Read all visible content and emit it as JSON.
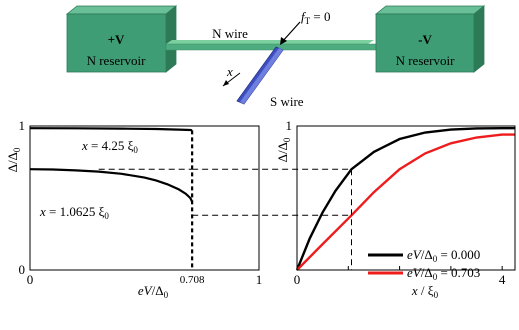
{
  "schematic": {
    "left_reservoir": {
      "sign": "+V",
      "label": "N reservoir"
    },
    "right_reservoir": {
      "sign": "-V",
      "label": "N reservoir"
    },
    "n_wire_label": "N wire",
    "s_wire_label": "S wire",
    "x_arrow_label": "x",
    "fT_symbol": "f",
    "fT_subscript": "T",
    "fT_value": " = 0",
    "colors": {
      "reservoir": "#3f9d75",
      "reservoir_top": "#69bf97",
      "reservoir_side": "#2d7a57",
      "n_wire": "#4fab80",
      "s_wire": "#3d4fc0"
    }
  },
  "chart_data": [
    {
      "type": "line",
      "xlabel_italic": "eV",
      "xlabel_rest": "/Δ",
      "xlabel_sub": "0",
      "ylabel_main": "Δ/Δ",
      "ylabel_sub": "0",
      "xlim": [
        0,
        1
      ],
      "ylim": [
        0,
        1
      ],
      "xticks": [
        "0",
        "1"
      ],
      "yticks": [
        "0",
        "1"
      ],
      "special_tick": {
        "value": 0.708,
        "label": "0.708"
      },
      "annotations": [
        {
          "italic": "x",
          "rest": " = 4.25 ξ",
          "sub": "0"
        },
        {
          "italic": "x",
          "rest": " = 1.0625 ξ",
          "sub": "0"
        }
      ],
      "series": [
        {
          "color": "#000000",
          "x": [
            0,
            0.2,
            0.4,
            0.55,
            0.65,
            0.7,
            0.708
          ],
          "y": [
            0.985,
            0.984,
            0.982,
            0.979,
            0.975,
            0.972,
            0.97
          ]
        },
        {
          "color": "#000000",
          "x": [
            0,
            0.1,
            0.2,
            0.3,
            0.4,
            0.5,
            0.55,
            0.6,
            0.65,
            0.68,
            0.7,
            0.708
          ],
          "y": [
            0.7,
            0.698,
            0.692,
            0.683,
            0.668,
            0.642,
            0.622,
            0.595,
            0.56,
            0.53,
            0.5,
            0.475
          ]
        }
      ],
      "dashed_drop": {
        "x": 0.708,
        "y_from": 0.97,
        "y_to": 0
      }
    },
    {
      "type": "line",
      "xlabel_italic": "x",
      "xlabel_rest": " / ξ",
      "xlabel_sub": "0",
      "ylabel_main": "Δ/Δ",
      "ylabel_sub": "0",
      "xlim": [
        0,
        4.25
      ],
      "ylim": [
        0,
        1
      ],
      "xticks": [
        "0",
        "4"
      ],
      "yticks": [
        "1"
      ],
      "series": [
        {
          "name_italic": "eV",
          "name_rest": "/Δ",
          "name_sub": "0",
          "name_value": " = 0.000",
          "color": "#000000",
          "x": [
            0,
            0.25,
            0.5,
            0.75,
            1.0625,
            1.5,
            2.0,
            2.5,
            3.0,
            3.5,
            4.0,
            4.25
          ],
          "y": [
            0,
            0.22,
            0.4,
            0.55,
            0.7,
            0.82,
            0.91,
            0.955,
            0.975,
            0.983,
            0.985,
            0.985
          ]
        },
        {
          "name_italic": "eV",
          "name_rest": "/Δ",
          "name_sub": "0",
          "name_value": " = 0.703",
          "color": "#ee1c1c",
          "x": [
            0,
            0.5,
            1.0625,
            1.5,
            2.0,
            2.5,
            3.0,
            3.5,
            4.0,
            4.25
          ],
          "y": [
            0,
            0.18,
            0.38,
            0.54,
            0.7,
            0.81,
            0.88,
            0.92,
            0.94,
            0.94
          ]
        }
      ],
      "guide_x": 1.0625,
      "guide_y": [
        0.7,
        0.38
      ]
    }
  ]
}
